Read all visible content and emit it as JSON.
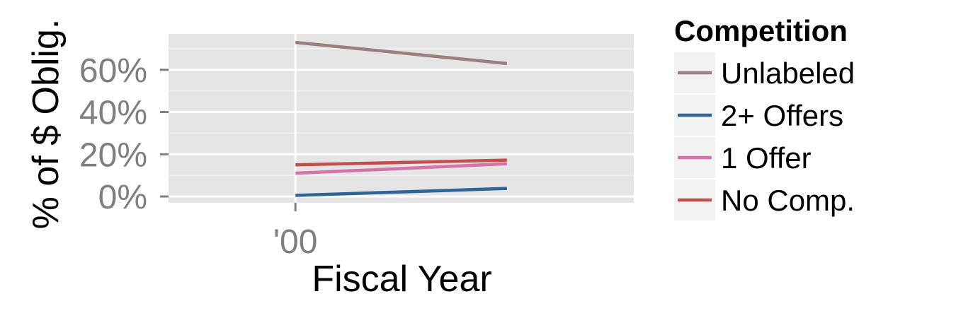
{
  "chart_data": {
    "type": "line",
    "xlabel": "Fiscal Year",
    "ylabel": "% of $ Oblig.",
    "x_tick_labels": [
      "'00"
    ],
    "y_tick_labels": [
      "0%",
      "20%",
      "40%",
      "60%"
    ],
    "y_ticks": [
      0,
      20,
      40,
      60
    ],
    "ylim": [
      -3,
      77
    ],
    "xlim": [
      1999.4,
      2001.6
    ],
    "x": [
      2000,
      2001
    ],
    "grid": true,
    "legend": {
      "title": "Competition",
      "position": "right"
    },
    "series": [
      {
        "name": "Unlabeled",
        "color": "#9b7f7f",
        "values": [
          73,
          63
        ]
      },
      {
        "name": "2+ Offers",
        "color": "#2f6496",
        "values": [
          0.5,
          3.8
        ]
      },
      {
        "name": "1 Offer",
        "color": "#d274a8",
        "values": [
          11,
          15.5
        ]
      },
      {
        "name": "No Comp.",
        "color": "#c0504d",
        "values": [
          15,
          17.2
        ]
      }
    ]
  }
}
